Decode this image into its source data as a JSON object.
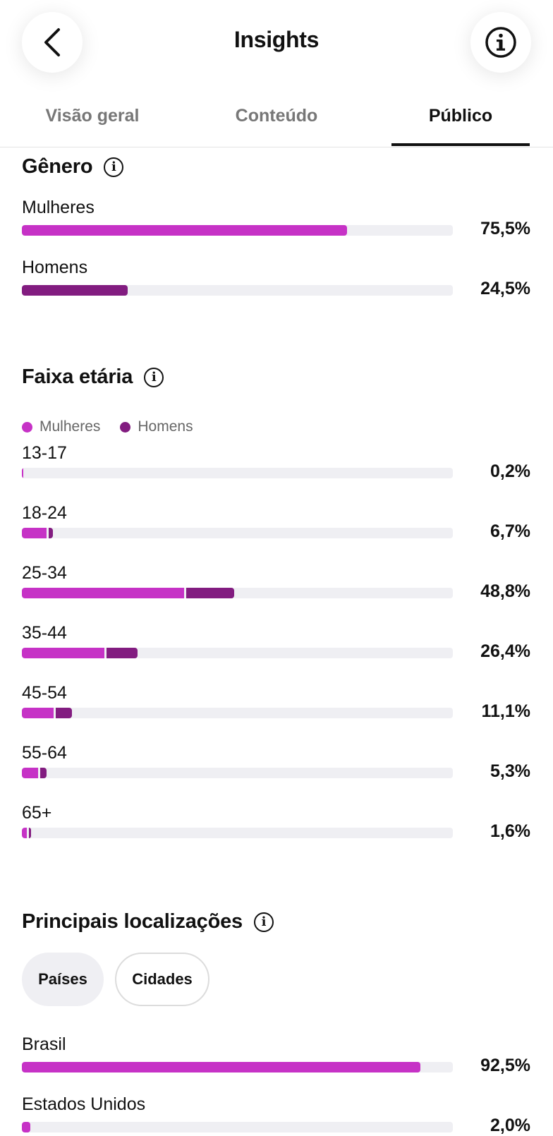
{
  "header": {
    "title": "Insights",
    "back_icon": "chevron-left-icon",
    "info_icon": "info-icon"
  },
  "tabs": [
    {
      "label": "Visão geral",
      "active": false
    },
    {
      "label": "Conteúdo",
      "active": false
    },
    {
      "label": "Público",
      "active": true
    }
  ],
  "colors": {
    "women": "#c632c6",
    "men": "#821c80",
    "track": "#efeff3"
  },
  "gender": {
    "title": "Gênero",
    "rows": [
      {
        "label": "Mulheres",
        "value": 75.5,
        "pct": "75,5%"
      },
      {
        "label": "Homens",
        "value": 24.5,
        "pct": "24,5%"
      }
    ]
  },
  "age": {
    "title": "Faixa etária",
    "legend": {
      "women": "Mulheres",
      "men": "Homens"
    },
    "rows": [
      {
        "label": "13-17",
        "total": 0.2,
        "women": 0.2,
        "men": 0.0,
        "pct": "0,2%"
      },
      {
        "label": "18-24",
        "total": 6.7,
        "women": 5.8,
        "men": 0.9,
        "pct": "6,7%"
      },
      {
        "label": "25-34",
        "total": 48.8,
        "women": 37.7,
        "men": 11.1,
        "pct": "48,8%"
      },
      {
        "label": "35-44",
        "total": 26.4,
        "women": 19.1,
        "men": 7.3,
        "pct": "26,4%"
      },
      {
        "label": "45-54",
        "total": 11.1,
        "women": 7.4,
        "men": 3.7,
        "pct": "11,1%"
      },
      {
        "label": "55-64",
        "total": 5.3,
        "women": 3.7,
        "men": 1.6,
        "pct": "5,3%"
      },
      {
        "label": "65+",
        "total": 1.6,
        "women": 1.2,
        "men": 0.4,
        "pct": "1,6%"
      }
    ]
  },
  "locations": {
    "title": "Principais localizações",
    "filters": [
      {
        "label": "Países",
        "selected": true
      },
      {
        "label": "Cidades",
        "selected": false
      }
    ],
    "rows": [
      {
        "label": "Brasil",
        "value": 92.5,
        "pct": "92,5%"
      },
      {
        "label": "Estados Unidos",
        "value": 2.0,
        "pct": "2,0%"
      }
    ]
  }
}
